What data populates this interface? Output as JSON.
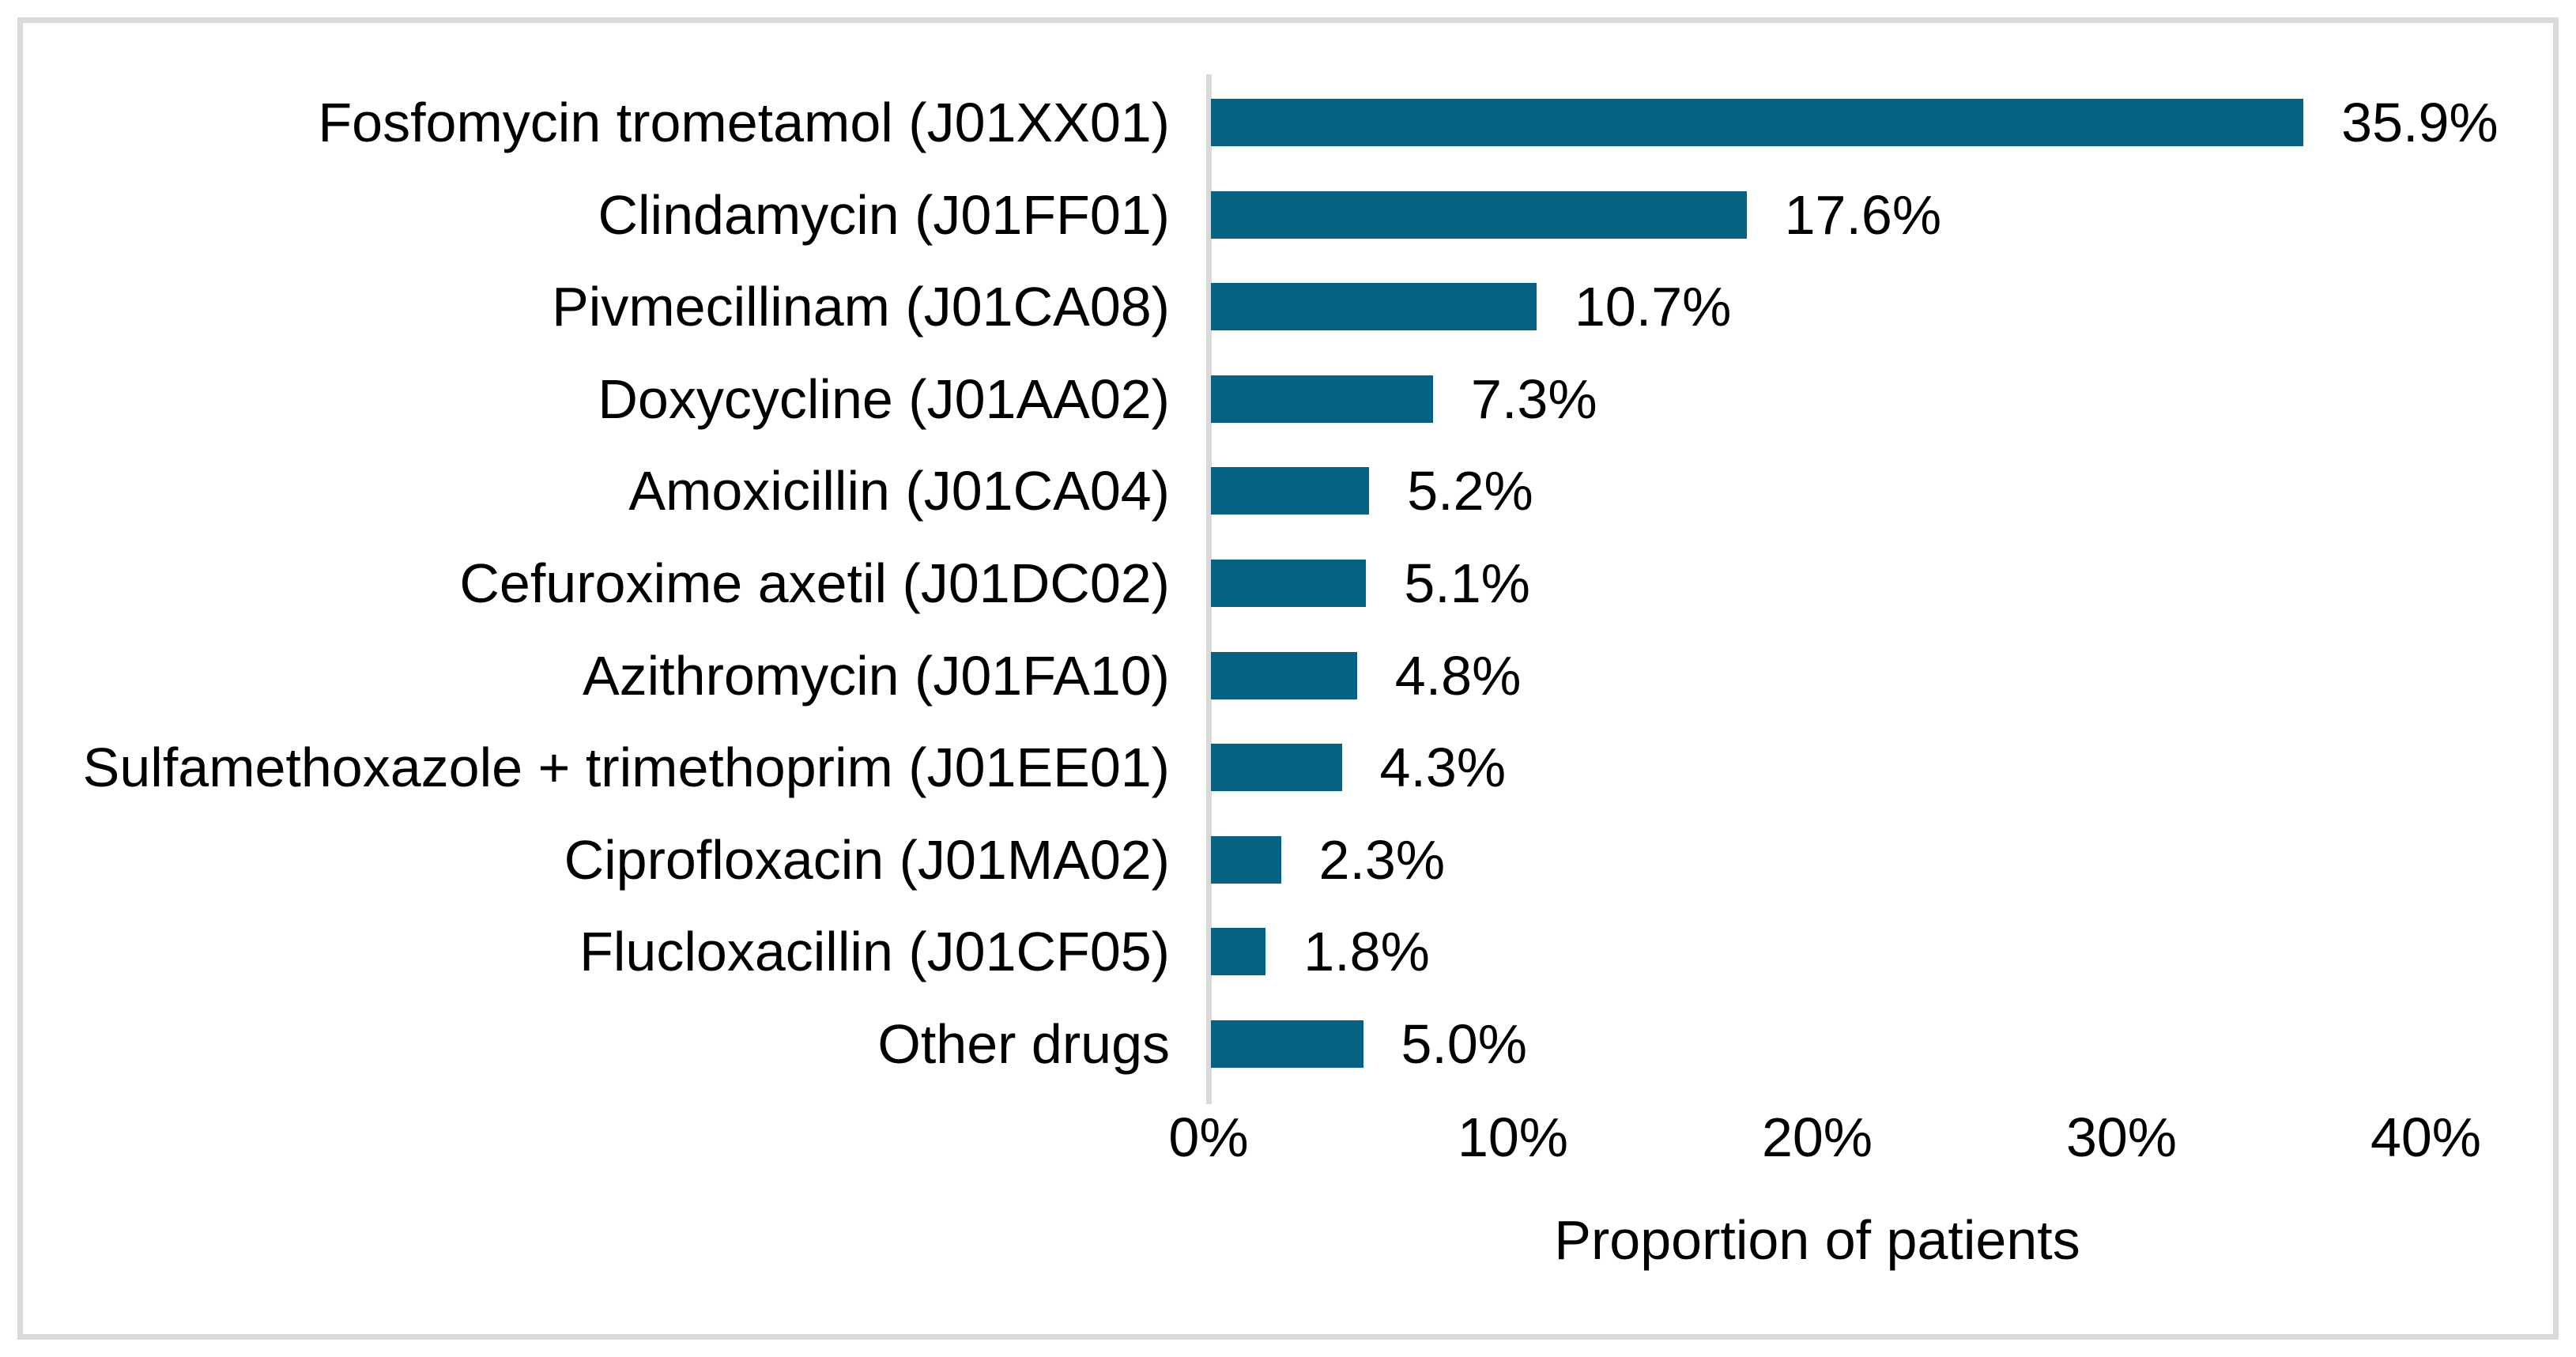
{
  "figure": {
    "background": "#FFFFFF",
    "frame_color": "#DADADA"
  },
  "chart_data": {
    "type": "bar",
    "orientation": "horizontal",
    "title": "",
    "xlabel": "Proportion of patients",
    "ylabel": "",
    "categories": [
      "Fosfomycin trometamol (J01XX01)",
      "Clindamycin (J01FF01)",
      "Pivmecillinam (J01CA08)",
      "Doxycycline (J01AA02)",
      "Amoxicillin (J01CA04)",
      "Cefuroxime axetil (J01DC02)",
      "Azithromycin (J01FA10)",
      "Sulfamethoxazole + trimethoprim (J01EE01)",
      "Ciprofloxacin (J01MA02)",
      "Flucloxacillin (J01CF05)",
      "Other drugs"
    ],
    "values": [
      35.9,
      17.6,
      10.7,
      7.3,
      5.2,
      5.1,
      4.8,
      4.3,
      2.3,
      1.8,
      5.0
    ],
    "value_labels": [
      "35.9%",
      "17.6%",
      "10.7%",
      "7.3%",
      "5.2%",
      "5.1%",
      "4.8%",
      "4.3%",
      "2.3%",
      "1.8%",
      "5.0%"
    ],
    "xlim": [
      0,
      40
    ],
    "x_ticks": [
      0,
      10,
      20,
      30,
      40
    ],
    "x_tick_labels": [
      "0%",
      "10%",
      "20%",
      "30%",
      "40%"
    ],
    "grid": false,
    "legend": "none",
    "bar_color": "#076183",
    "axis_line_color": "#D9D9D9",
    "text_color": "#000000"
  }
}
